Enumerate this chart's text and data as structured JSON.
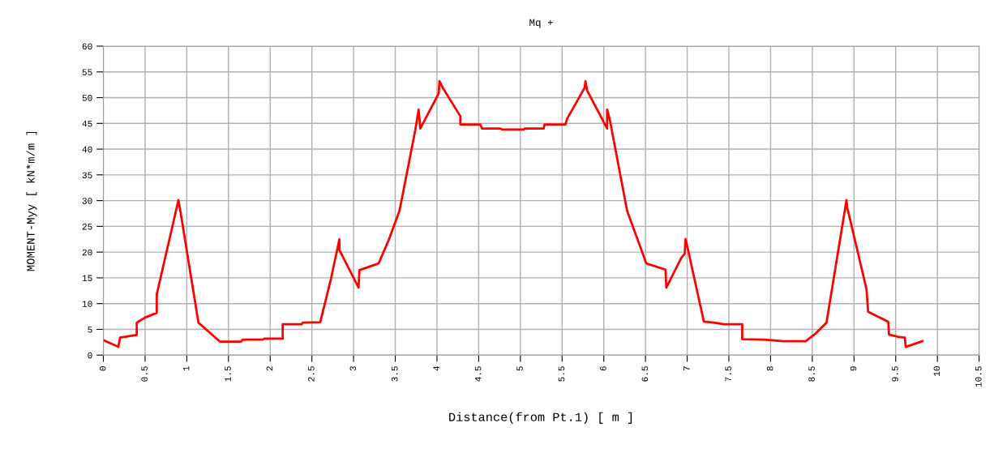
{
  "chart_data": {
    "type": "line",
    "title": "Mq +",
    "xlabel": "Distance(from Pt.1) [ m ]",
    "ylabel": "MOMENT-Myy [ kN*m/m ]",
    "series": [
      {
        "color": "#ff0000",
        "x": [
          0,
          0.18,
          0.2,
          0.4,
          0.4,
          0.5,
          0.64,
          0.64,
          0.9,
          0.92,
          1.14,
          1.4,
          1.65,
          1.67,
          1.91,
          1.93,
          2.15,
          2.15,
          2.38,
          2.39,
          2.6,
          2.73,
          2.83,
          2.83,
          3.06,
          3.07,
          3.3,
          3.42,
          3.55,
          3.74,
          3.78,
          3.8,
          4.02,
          4.03,
          4.07,
          4.28,
          4.28,
          4.52,
          4.54,
          4.76,
          4.78,
          5.04,
          5.05,
          5.28,
          5.29,
          5.54,
          5.56,
          5.77,
          5.78,
          5.8,
          6.04,
          6.04,
          6.07,
          6.28,
          6.51,
          6.74,
          6.75,
          6.93,
          6.97,
          6.98,
          7.0,
          7.2,
          7.32,
          7.44,
          7.66,
          7.66,
          7.92,
          8.16,
          8.42,
          8.54,
          8.67,
          8.91,
          8.92,
          9.15,
          9.17,
          9.41,
          9.42,
          9.54,
          9.61,
          9.62,
          9.82
        ],
        "values": [
          2.9,
          1.6,
          3.4,
          3.9,
          6.3,
          7.3,
          8.2,
          11.8,
          30.1,
          28.3,
          6.3,
          2.6,
          2.6,
          3.0,
          3.0,
          3.2,
          3.2,
          6.0,
          6.0,
          6.3,
          6.4,
          14.9,
          22.5,
          20.4,
          13.1,
          16.5,
          17.8,
          22.3,
          28.0,
          43.7,
          47.7,
          44.0,
          50.8,
          53.2,
          51.9,
          46.4,
          44.8,
          44.8,
          44.0,
          44.0,
          43.8,
          43.8,
          44.0,
          44.0,
          44.8,
          44.8,
          45.9,
          51.9,
          53.2,
          51.4,
          44.0,
          47.7,
          45.9,
          28.0,
          17.8,
          16.6,
          13.1,
          18.9,
          19.7,
          22.5,
          21.2,
          6.5,
          6.3,
          6.0,
          6.0,
          3.1,
          3.0,
          2.7,
          2.7,
          4.2,
          6.3,
          30.1,
          28.6,
          12.8,
          8.4,
          6.5,
          4.0,
          3.5,
          3.4,
          1.6,
          2.7
        ]
      }
    ],
    "xlim": [
      0,
      10.5
    ],
    "xticks": [
      0,
      0.5,
      1,
      1.5,
      2,
      2.5,
      3,
      3.5,
      4,
      4.5,
      5,
      5.5,
      6,
      6.5,
      7,
      7.5,
      8,
      8.5,
      9,
      9.5,
      10,
      10.5
    ],
    "ylim": [
      0,
      60
    ],
    "yticks": [
      0,
      5,
      10,
      15,
      20,
      25,
      30,
      35,
      40,
      45,
      50,
      55,
      60
    ],
    "grid": true,
    "marker": "none",
    "line_style": "solid"
  }
}
